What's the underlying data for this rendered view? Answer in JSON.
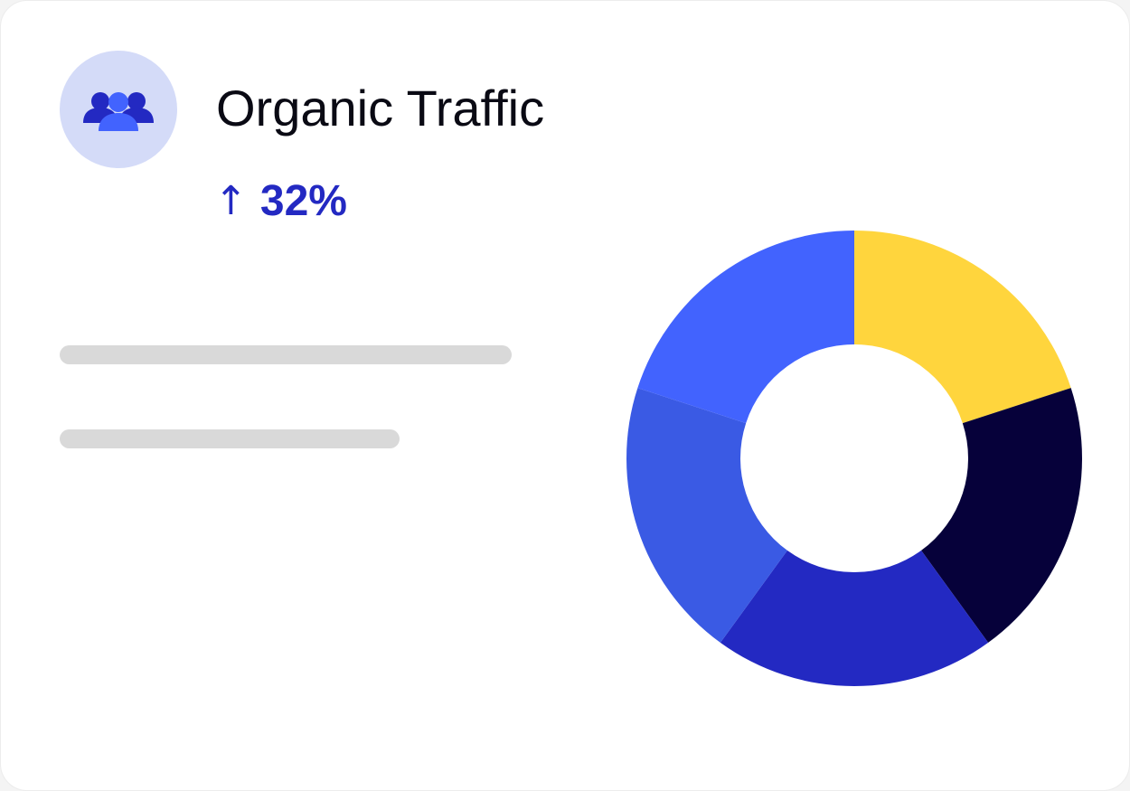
{
  "card": {
    "title": "Organic Traffic",
    "icon": "users-group-icon",
    "trend": {
      "arrow": "↑",
      "value": "32%",
      "direction": "up",
      "color": "#2329c2"
    }
  },
  "chart_data": {
    "type": "pie",
    "variant": "donut",
    "title": "",
    "legend": false,
    "slices": [
      {
        "value": 20,
        "color": "#ffd53d"
      },
      {
        "value": 20,
        "color": "#06013a"
      },
      {
        "value": 20,
        "color": "#2329c2"
      },
      {
        "value": 20,
        "color": "#3a5ae4"
      },
      {
        "value": 20,
        "color": "#4263fe"
      }
    ]
  },
  "colors": {
    "avatar_bg": "#d4dbf8",
    "icon_back": "#2329c2",
    "icon_front": "#4263fe",
    "placeholder": "#d9d9d9"
  }
}
